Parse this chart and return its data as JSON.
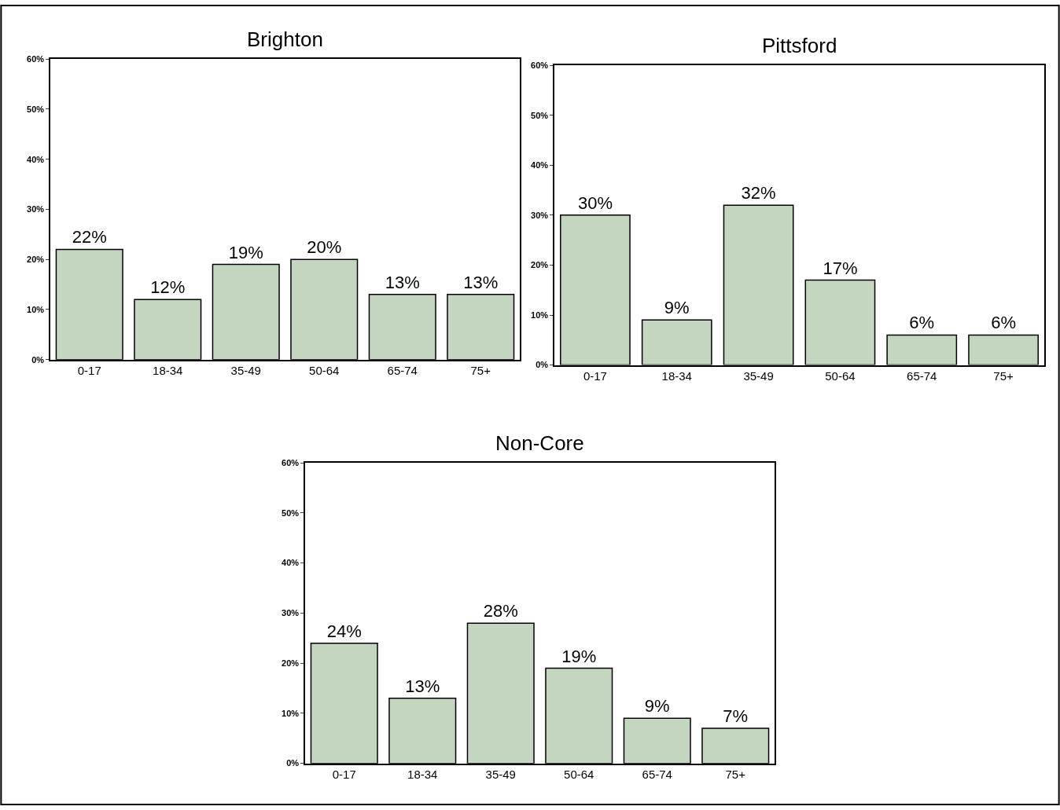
{
  "chart_data": [
    {
      "type": "bar",
      "title": "Brighton",
      "categories": [
        "0-17",
        "18-34",
        "35-49",
        "50-64",
        "65-74",
        "75+"
      ],
      "values": [
        22,
        12,
        19,
        20,
        13,
        13
      ],
      "value_labels": [
        "22%",
        "12%",
        "19%",
        "20%",
        "13%",
        "13%"
      ],
      "color": "#c5d6c0",
      "ylim": [
        0,
        60
      ],
      "yticks": [
        {
          "value": 0,
          "label": "0%"
        },
        {
          "value": 10,
          "label": "10%"
        },
        {
          "value": 20,
          "label": "20%"
        },
        {
          "value": 30,
          "label": "30%"
        },
        {
          "value": 40,
          "label": "40%"
        },
        {
          "value": 50,
          "label": "50%"
        },
        {
          "value": 60,
          "label": "60%"
        }
      ]
    },
    {
      "type": "bar",
      "title": "Pittsford",
      "categories": [
        "0-17",
        "18-34",
        "35-49",
        "50-64",
        "65-74",
        "75+"
      ],
      "values": [
        30,
        9,
        32,
        17,
        6,
        6
      ],
      "value_labels": [
        "30%",
        "9%",
        "32%",
        "17%",
        "6%",
        "6%"
      ],
      "color": "#c5d6c0",
      "ylim": [
        0,
        60
      ],
      "yticks": [
        {
          "value": 0,
          "label": "0%"
        },
        {
          "value": 10,
          "label": "10%"
        },
        {
          "value": 20,
          "label": "20%"
        },
        {
          "value": 30,
          "label": "30%"
        },
        {
          "value": 40,
          "label": "40%"
        },
        {
          "value": 50,
          "label": "50%"
        },
        {
          "value": 60,
          "label": "60%"
        }
      ]
    },
    {
      "type": "bar",
      "title": "Non-Core",
      "categories": [
        "0-17",
        "18-34",
        "35-49",
        "50-64",
        "65-74",
        "75+"
      ],
      "values": [
        24,
        13,
        28,
        19,
        9,
        7
      ],
      "value_labels": [
        "24%",
        "13%",
        "28%",
        "19%",
        "9%",
        "7%"
      ],
      "color": "#c5d6c0",
      "ylim": [
        0,
        60
      ],
      "yticks": [
        {
          "value": 0,
          "label": "0%"
        },
        {
          "value": 10,
          "label": "10%"
        },
        {
          "value": 20,
          "label": "20%"
        },
        {
          "value": 30,
          "label": "30%"
        },
        {
          "value": 40,
          "label": "40%"
        },
        {
          "value": 50,
          "label": "50%"
        },
        {
          "value": 60,
          "label": "60%"
        }
      ]
    }
  ]
}
